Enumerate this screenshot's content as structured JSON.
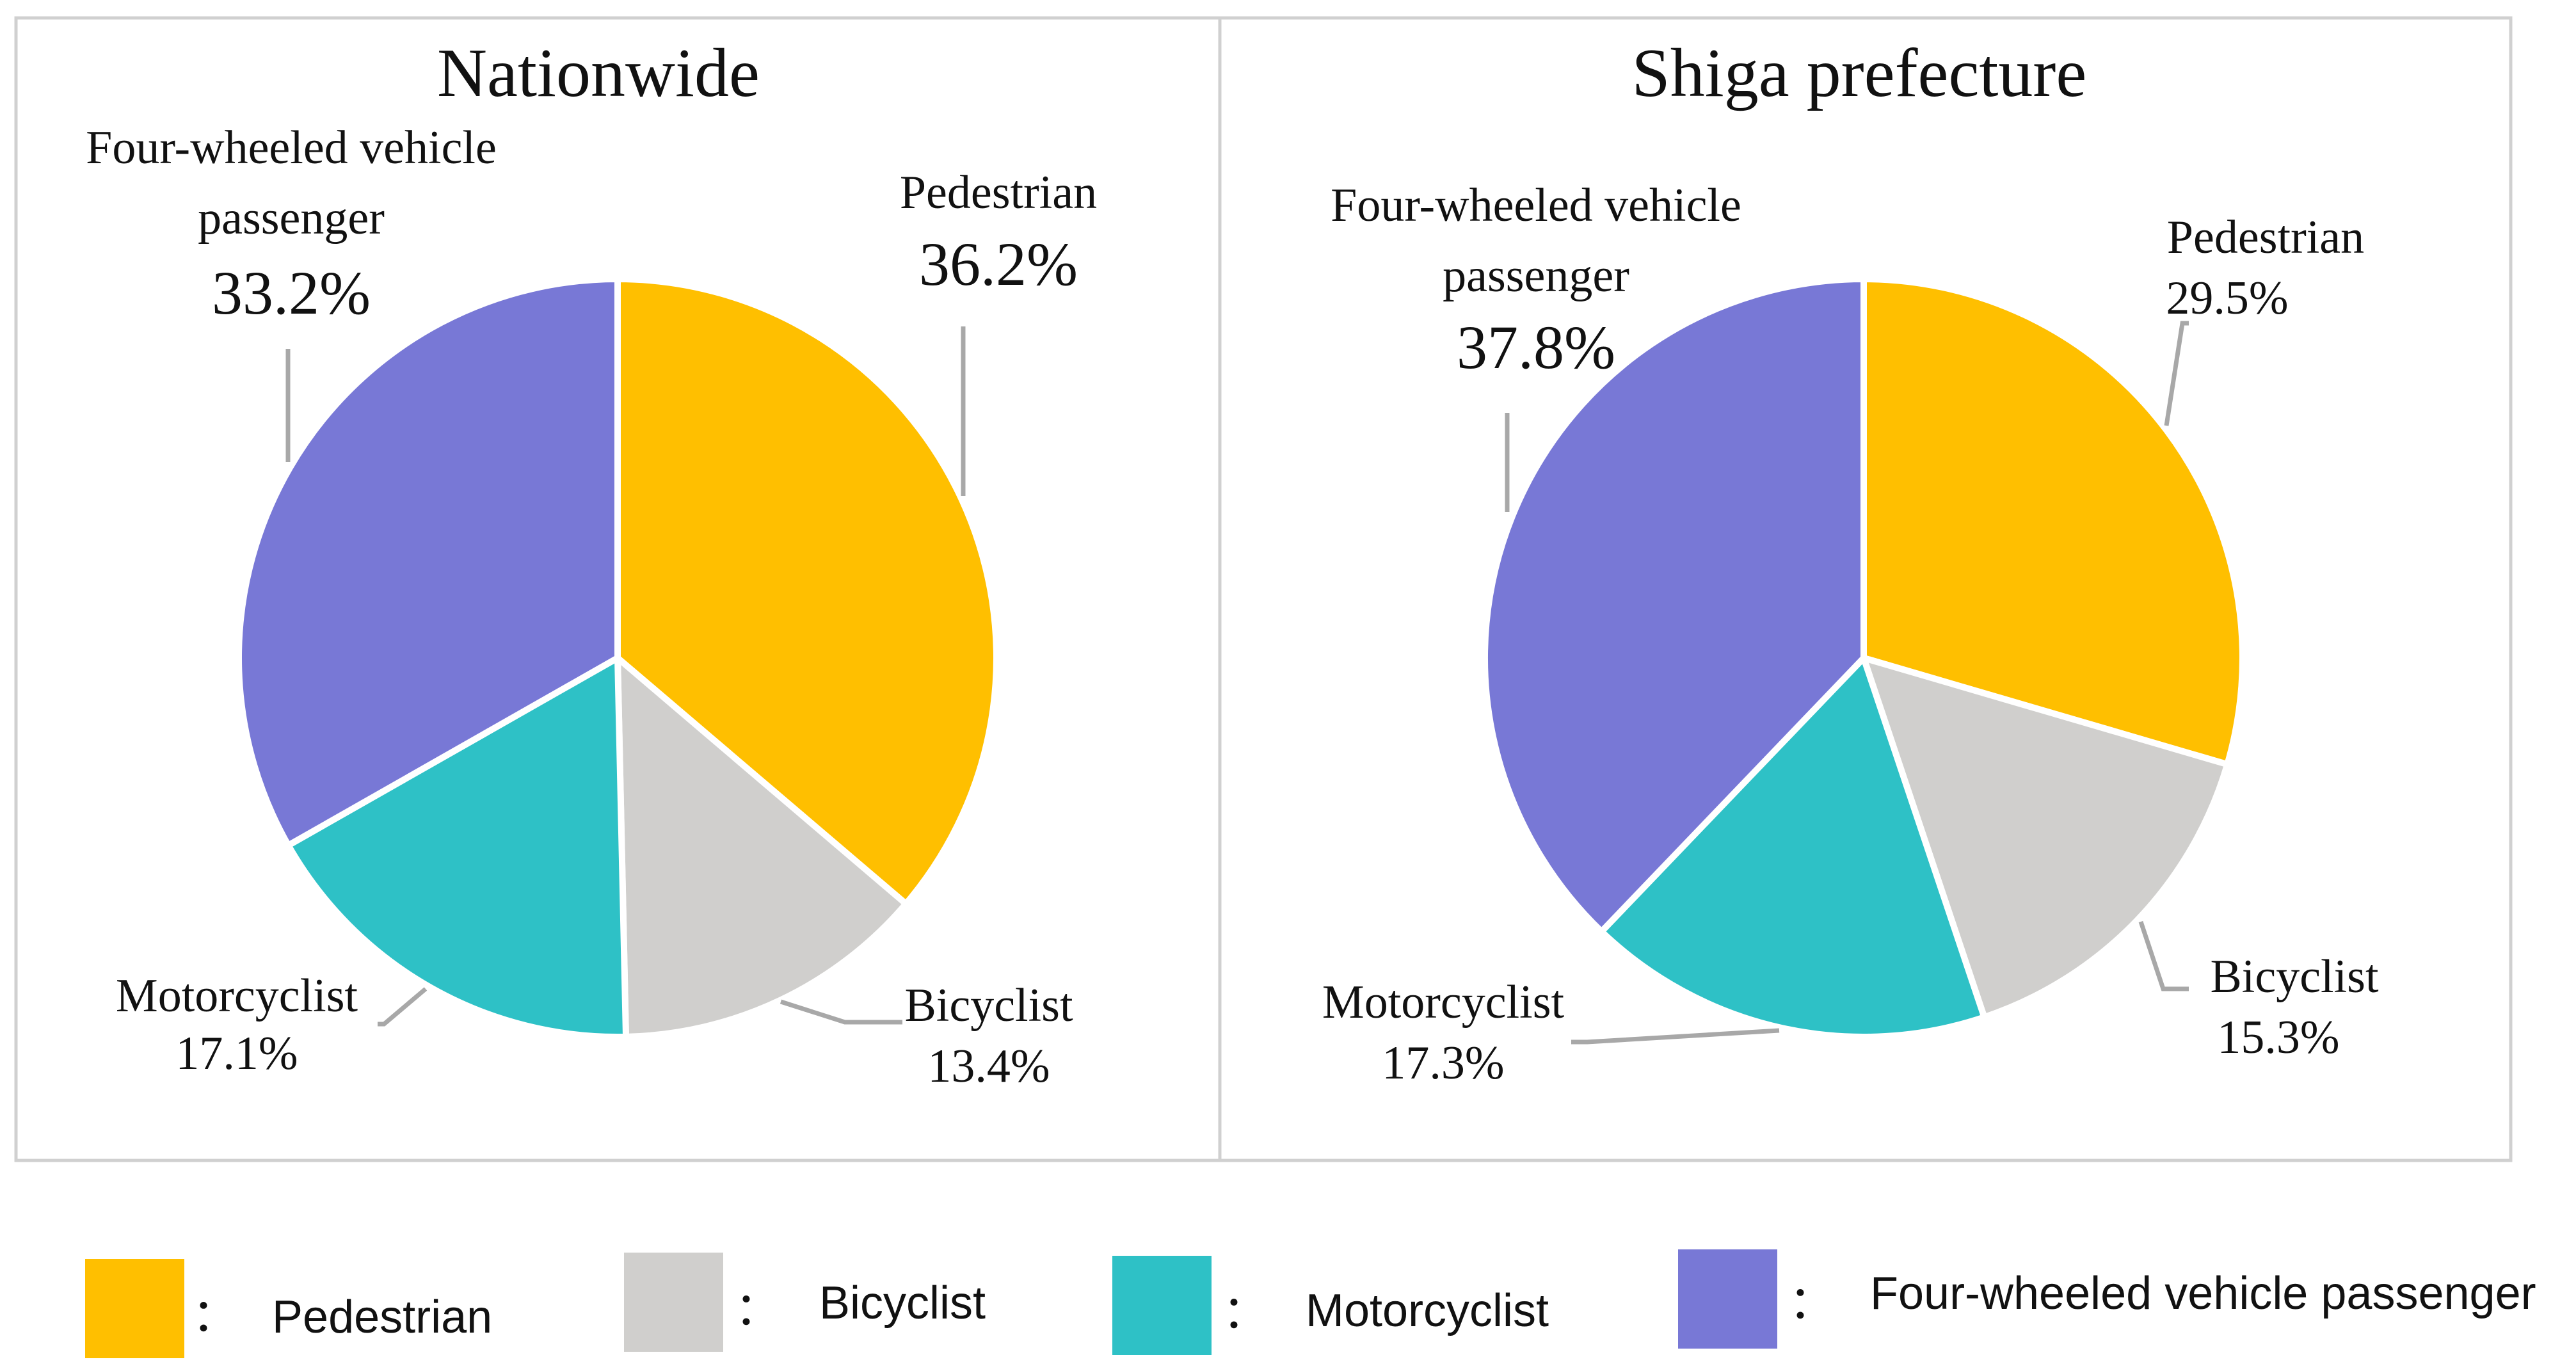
{
  "chart_data": [
    {
      "type": "pie",
      "title": "Nationwide",
      "slices": [
        {
          "key": "pedestrian",
          "label": "Pedestrian",
          "value": 36.2,
          "display": "36.2%"
        },
        {
          "key": "bicyclist",
          "label": "Bicyclist",
          "value": 13.4,
          "display": "13.4%"
        },
        {
          "key": "motorcyclist",
          "label": "Motorcyclist",
          "value": 17.1,
          "display": "17.1%"
        },
        {
          "key": "four_wheeled",
          "label_lines": [
            "Four-wheeled vehicle",
            "passenger"
          ],
          "value": 33.2,
          "display": "33.2%"
        }
      ]
    },
    {
      "type": "pie",
      "title": "Shiga prefecture",
      "slices": [
        {
          "key": "pedestrian",
          "label": "Pedestrian",
          "value": 29.5,
          "display": "29.5%"
        },
        {
          "key": "bicyclist",
          "label": "Bicyclist",
          "value": 15.3,
          "display": "15.3%"
        },
        {
          "key": "motorcyclist",
          "label": "Motorcyclist",
          "value": 17.3,
          "display": "17.3%"
        },
        {
          "key": "four_wheeled",
          "label_lines": [
            "Four-wheeled vehicle",
            "passenger"
          ],
          "value": 37.8,
          "display": "37.8%"
        }
      ]
    }
  ],
  "legend": {
    "separator": "：",
    "items": [
      {
        "key": "pedestrian",
        "label": "Pedestrian",
        "color": "#FFBF00"
      },
      {
        "key": "bicyclist",
        "label": "Bicyclist",
        "color": "#D0CFCD"
      },
      {
        "key": "motorcyclist",
        "label": "Motorcyclist",
        "color": "#2EC1C6"
      },
      {
        "key": "four_wheeled",
        "label": "Four-wheeled vehicle passenger",
        "color": "#7878D6"
      }
    ]
  }
}
